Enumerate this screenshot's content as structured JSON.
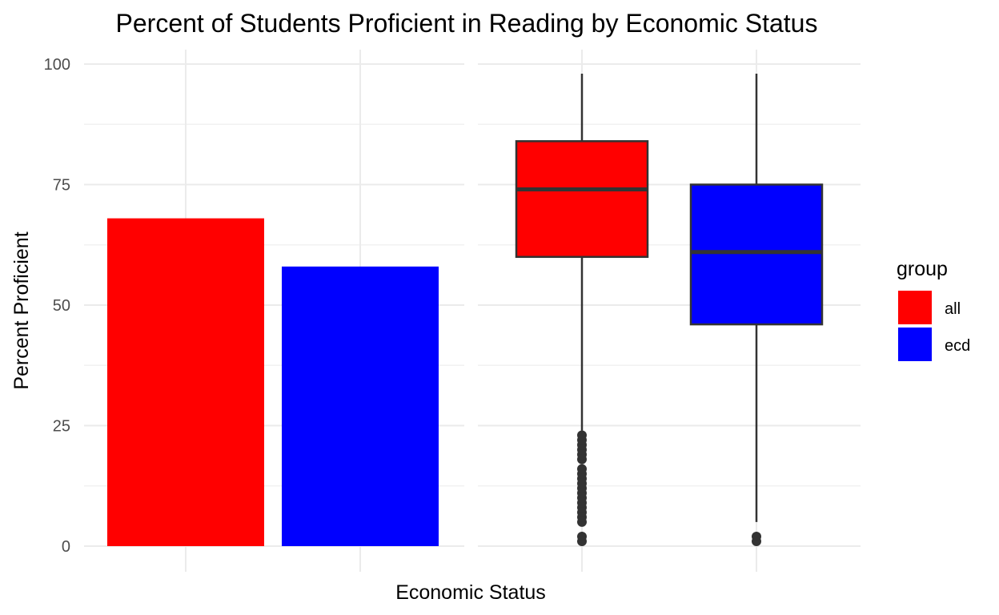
{
  "chart_data": {
    "title": "Percent of Students Proficient in Reading by Economic Status",
    "xlabel": "Economic Status",
    "ylabel": "Percent Proficient",
    "ylim": [
      0,
      100
    ],
    "yticks": [
      "0",
      "25",
      "50",
      "75",
      "100"
    ],
    "grid": true,
    "legend": {
      "title": "group",
      "placement": "right",
      "entries": [
        {
          "label": "all",
          "color": "#ff0000"
        },
        {
          "label": "ecd",
          "color": "#0000ff"
        }
      ]
    },
    "panels": [
      {
        "type": "bar",
        "categories": [
          "all",
          "ecd"
        ],
        "values": [
          68,
          58
        ],
        "colors": [
          "#ff0000",
          "#0000ff"
        ]
      },
      {
        "type": "boxplot",
        "categories": [
          "all",
          "ecd"
        ],
        "colors": [
          "#ff0000",
          "#0000ff"
        ],
        "boxes": [
          {
            "group": "all",
            "whisker_low": 24,
            "q1": 60,
            "median": 74,
            "q3": 84,
            "whisker_high": 98,
            "outliers": [
              1,
              2,
              5,
              6,
              7,
              8,
              9,
              10,
              11,
              12,
              13,
              14,
              15,
              16,
              18,
              19,
              20,
              21,
              22,
              23
            ]
          },
          {
            "group": "ecd",
            "whisker_low": 5,
            "q1": 46,
            "median": 61,
            "q3": 75,
            "whisker_high": 98,
            "outliers": [
              1,
              2
            ]
          }
        ]
      }
    ]
  }
}
